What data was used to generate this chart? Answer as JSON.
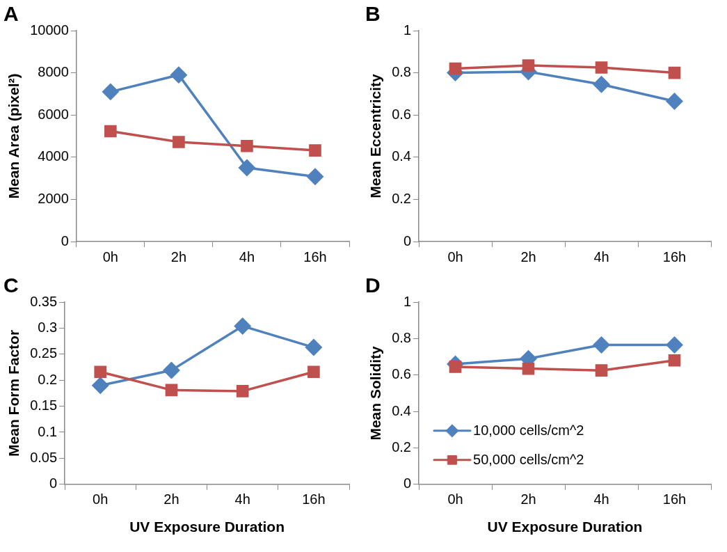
{
  "chart_data": [
    {
      "type": "line",
      "title": "A",
      "ylabel": "Mean Area (pixel²)",
      "categories": [
        "0h",
        "2h",
        "4h",
        "16h"
      ],
      "ylim": [
        0,
        10000
      ],
      "yticks": [
        0,
        2000,
        4000,
        6000,
        8000,
        10000
      ],
      "grid": false,
      "legend": false,
      "series": [
        {
          "color": "#4f81bd",
          "marker": "diamond",
          "values": [
            7100,
            7900,
            3500,
            3080
          ]
        },
        {
          "color": "#c0504d",
          "marker": "square",
          "values": [
            5230,
            4720,
            4530,
            4320
          ]
        }
      ]
    },
    {
      "type": "line",
      "title": "B",
      "ylabel": "Mean Eccentricity",
      "categories": [
        "0h",
        "2h",
        "4h",
        "16h"
      ],
      "ylim": [
        0,
        1
      ],
      "yticks": [
        0,
        0.2,
        0.4,
        0.6,
        0.8,
        1
      ],
      "grid": false,
      "legend": false,
      "series": [
        {
          "color": "#4f81bd",
          "marker": "diamond",
          "values": [
            0.8,
            0.805,
            0.745,
            0.665
          ]
        },
        {
          "color": "#c0504d",
          "marker": "square",
          "values": [
            0.82,
            0.835,
            0.825,
            0.8
          ]
        }
      ]
    },
    {
      "type": "line",
      "title": "C",
      "xlabel": "UV Exposure Duration",
      "ylabel": "Mean Form Factor",
      "categories": [
        "0h",
        "2h",
        "4h",
        "16h"
      ],
      "ylim": [
        0,
        0.35
      ],
      "yticks": [
        0,
        0.05,
        0.1,
        0.15,
        0.2,
        0.25,
        0.3,
        0.35
      ],
      "grid": false,
      "legend": false,
      "series": [
        {
          "color": "#4f81bd",
          "marker": "diamond",
          "values": [
            0.19,
            0.219,
            0.304,
            0.263
          ]
        },
        {
          "color": "#c0504d",
          "marker": "square",
          "values": [
            0.216,
            0.181,
            0.179,
            0.216
          ]
        }
      ]
    },
    {
      "type": "line",
      "title": "D",
      "xlabel": "UV Exposure Duration",
      "ylabel": "Mean Solidity",
      "categories": [
        "0h",
        "2h",
        "4h",
        "16h"
      ],
      "ylim": [
        0,
        1
      ],
      "yticks": [
        0,
        0.2,
        0.4,
        0.6,
        0.8,
        1
      ],
      "grid": false,
      "legend": "bottom left",
      "series": [
        {
          "name": "10,000 cells/cm^2",
          "color": "#4f81bd",
          "marker": "diamond",
          "values": [
            0.66,
            0.69,
            0.765,
            0.765
          ]
        },
        {
          "name": "50,000 cells/cm^2",
          "color": "#c0504d",
          "marker": "square",
          "values": [
            0.645,
            0.635,
            0.625,
            0.68
          ]
        }
      ]
    }
  ]
}
